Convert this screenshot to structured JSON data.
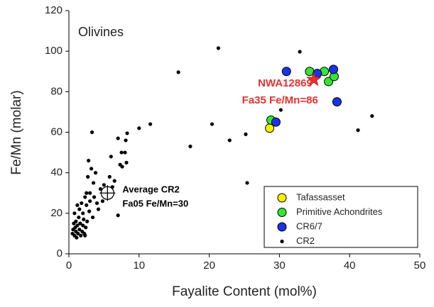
{
  "chart_data": {
    "type": "scatter",
    "title": "Olivines",
    "x_label": "Fayalite Content (mol%)",
    "y_label": "Fe/Mn (molar)",
    "xlim": [
      0,
      50
    ],
    "xticks": [
      0,
      10,
      20,
      30,
      40,
      50
    ],
    "ylim": [
      0,
      120
    ],
    "yticks": [
      0,
      20,
      40,
      60,
      80,
      100,
      120
    ],
    "legend": "lower right",
    "series": [
      {
        "name": "Tafassasset",
        "color": "#f5f000",
        "marker": "circle",
        "x": [
          28.6
        ],
        "values": [
          62
        ]
      },
      {
        "name": "Primitive Achondrites",
        "color": "#33e633",
        "marker": "circle",
        "x": [
          28.8,
          34.3,
          36.4,
          37.0,
          37.8
        ],
        "values": [
          66,
          90,
          90,
          85,
          87.5
        ]
      },
      {
        "name": "CR6/7",
        "color": "#1a33e6",
        "marker": "circle",
        "x": [
          29.5,
          31.0,
          35.4,
          37.7,
          38.2
        ],
        "values": [
          65,
          90,
          89,
          91,
          75
        ]
      },
      {
        "name": "CR2",
        "color": "#000000",
        "marker": "dot",
        "x": [
          21.3,
          15.6,
          32.9,
          11.6,
          10.0,
          8.3,
          8.1,
          20.4,
          17.3,
          22.9,
          25.2,
          25.4,
          30.2,
          41.2,
          43.2,
          0.5,
          0.6,
          0.7,
          0.8,
          0.9,
          1.0,
          1.0,
          1.1,
          1.2,
          1.3,
          1.4,
          1.5,
          1.5,
          1.6,
          1.7,
          1.8,
          1.9,
          2.0,
          2.0,
          2.1,
          2.2,
          2.3,
          2.4,
          2.5,
          2.5,
          2.6,
          2.7,
          2.8,
          2.9,
          3.0,
          3.0,
          3.2,
          3.3,
          3.4,
          3.5,
          3.6,
          3.8,
          4.0,
          4.2,
          4.5,
          4.8,
          5.0,
          5.5,
          5.8,
          6.0,
          6.2,
          6.5,
          7.0,
          7.0,
          7.3,
          7.5,
          7.6,
          8.0,
          8.2,
          0.8,
          1.2,
          2.3
        ],
        "values": [
          101.5,
          89.6,
          99.7,
          64,
          62,
          59.5,
          56,
          64,
          53,
          56,
          59,
          35,
          71,
          61,
          68,
          10,
          12,
          15,
          9,
          13,
          11,
          16,
          8,
          14,
          10,
          18,
          12,
          22,
          15,
          9,
          25,
          11,
          14,
          20,
          17,
          10,
          28,
          13,
          30,
          24,
          16,
          38,
          46,
          21,
          26,
          30,
          42,
          60,
          18,
          35,
          28,
          40,
          25,
          22,
          32,
          26,
          34,
          28,
          38,
          48,
          33,
          36,
          57,
          19,
          44,
          50,
          43,
          50,
          45,
          20,
          24,
          9
        ]
      }
    ],
    "highlights": [
      {
        "labels": [
          "NWA12869",
          "Fa35 Fe/Mn=86"
        ],
        "x": 34.9,
        "y": 86,
        "marker": "star",
        "color": "#e8312f"
      },
      {
        "labels": [
          "Average CR2",
          "Fa05 Fe/Mn=30"
        ],
        "x": 5.5,
        "y": 30,
        "marker": "crosshair",
        "color": "#000000"
      }
    ]
  }
}
